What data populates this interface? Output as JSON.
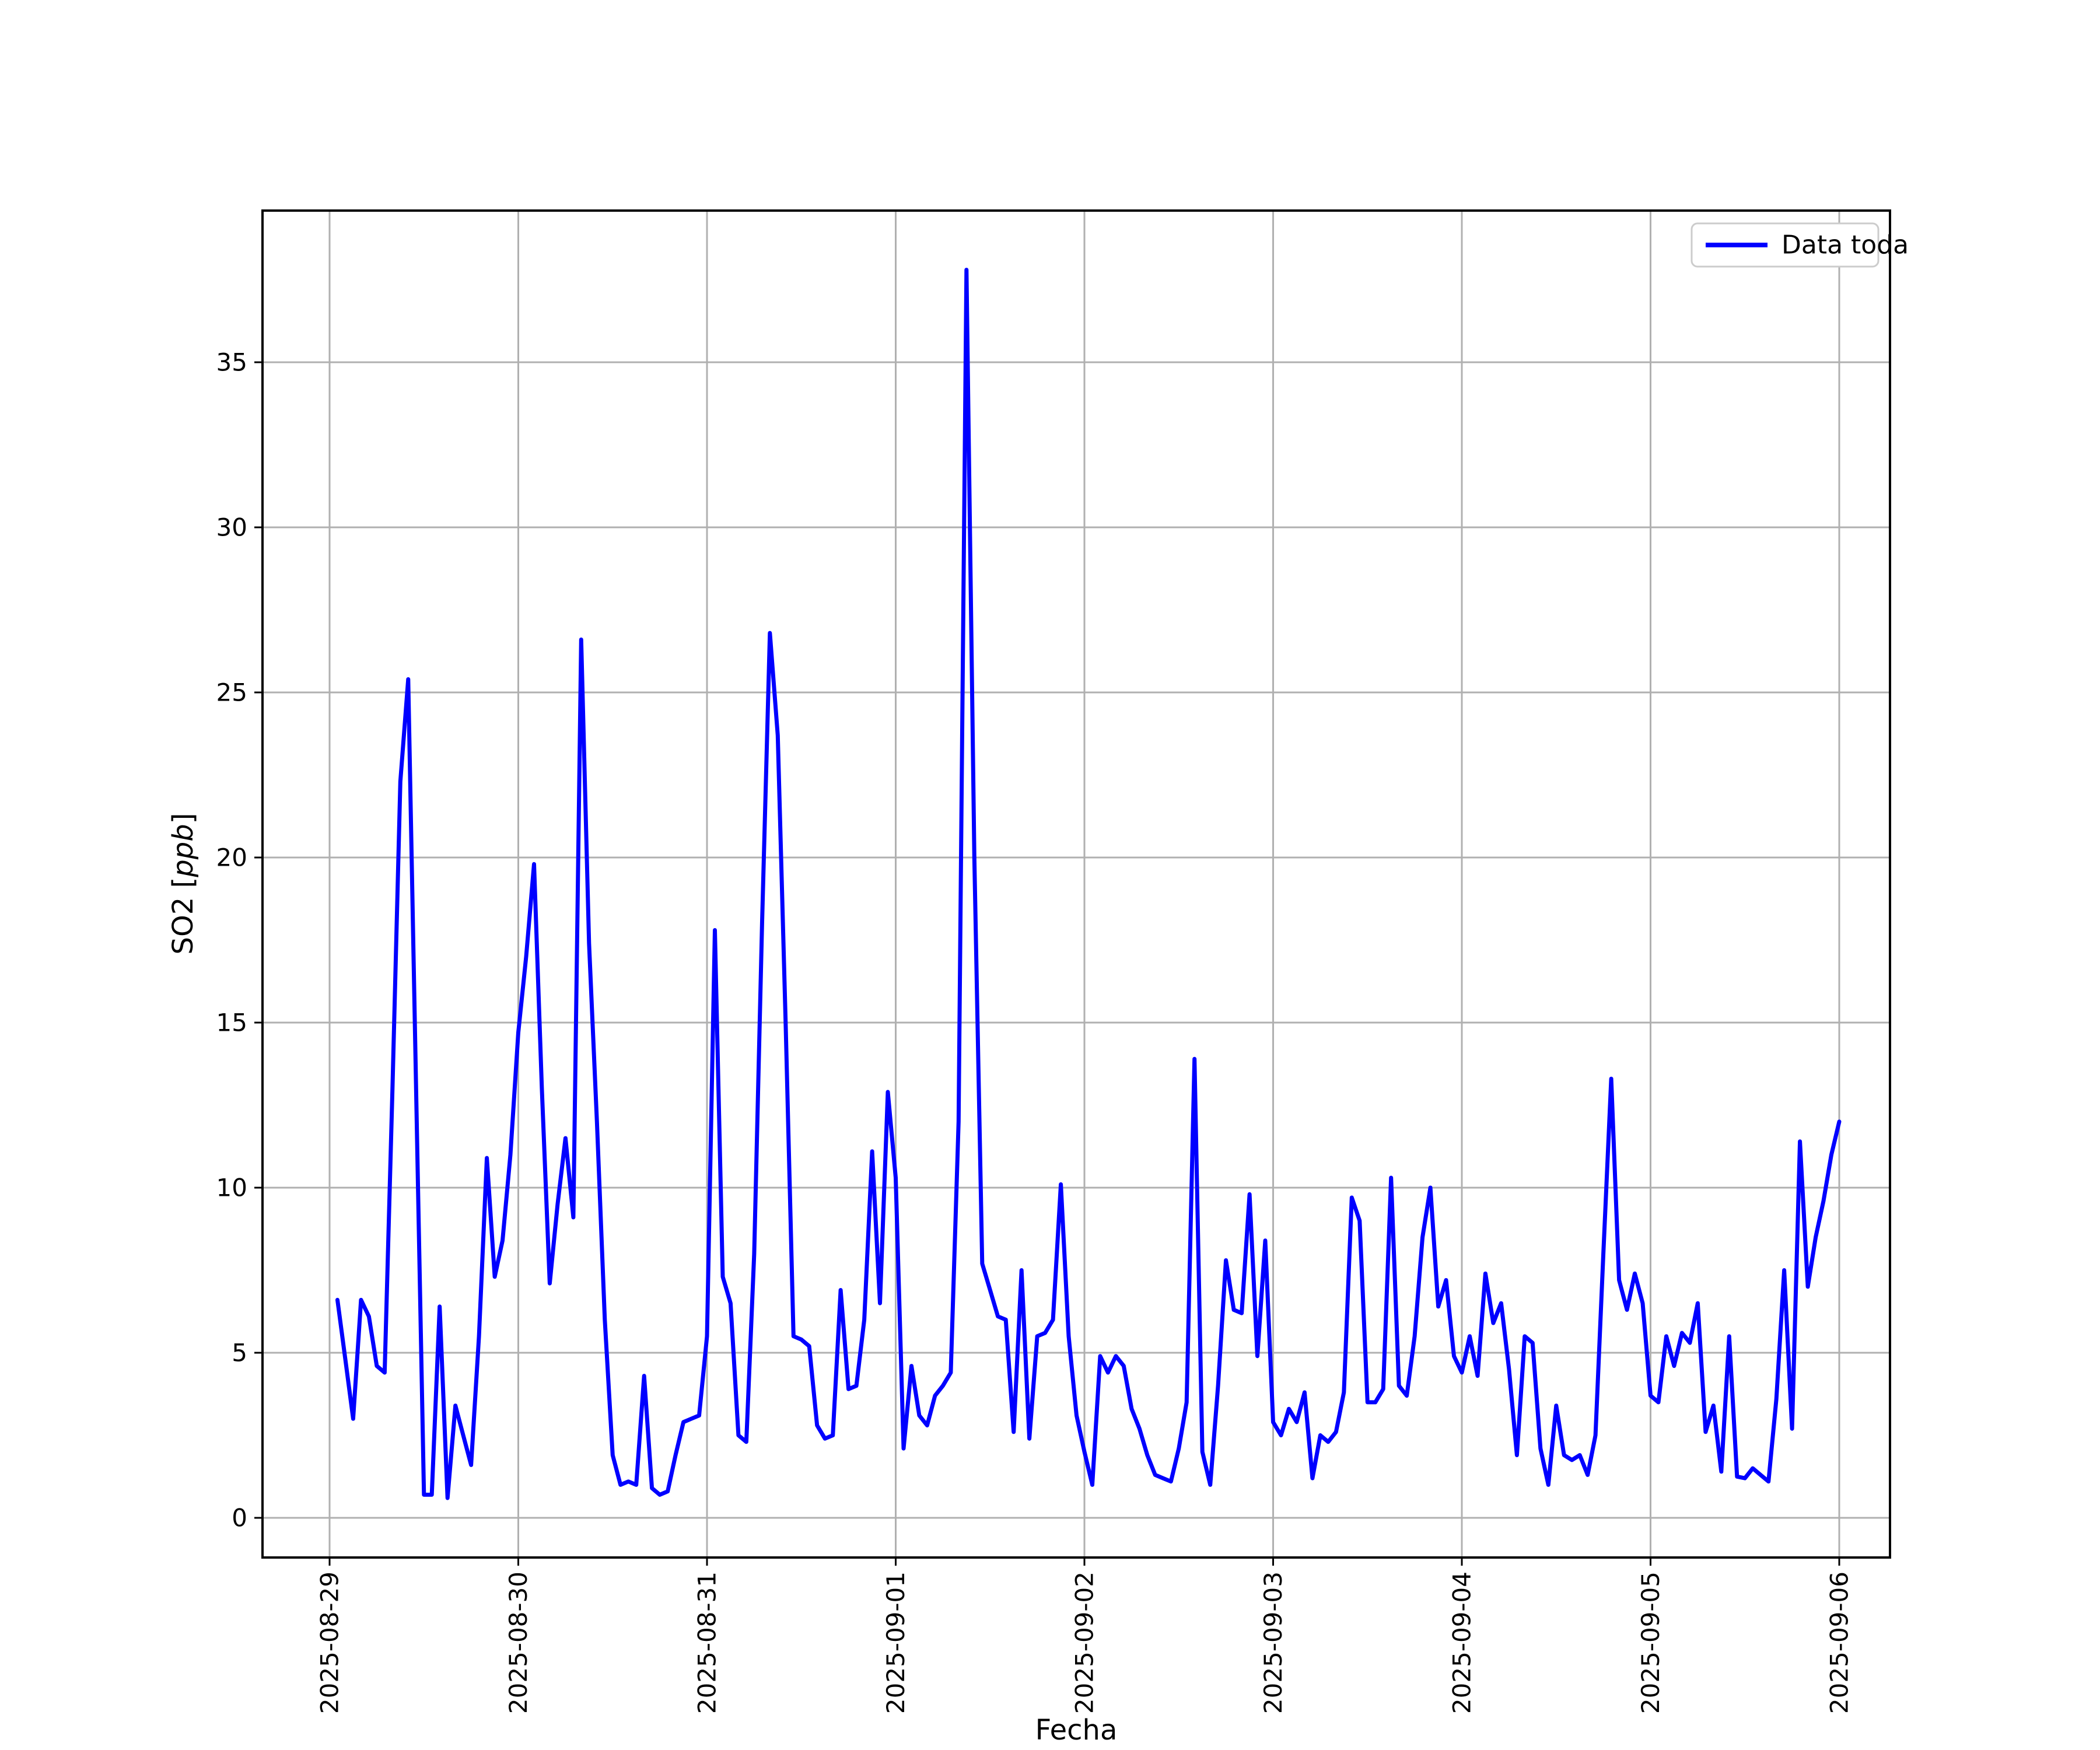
{
  "chart_data": {
    "type": "line",
    "title": "",
    "xlabel": "Fecha",
    "ylabel": "SO2 [ppb]",
    "ylabel_parts": {
      "prefix": "SO2 [",
      "italic": "ppb",
      "suffix": "]"
    },
    "legend": {
      "label": "Data toda",
      "position": "upper right"
    },
    "line_color": "#0000ff",
    "grid": true,
    "grid_color": "#b0b0b0",
    "axis_color": "#000000",
    "background_color": "#ffffff",
    "x_tick_labels": [
      "2025-08-29",
      "2025-08-30",
      "2025-08-31",
      "2025-09-01",
      "2025-09-02",
      "2025-09-03",
      "2025-09-04",
      "2025-09-05",
      "2025-09-06"
    ],
    "y_ticks": [
      0,
      5,
      10,
      15,
      20,
      25,
      30,
      35
    ],
    "ylim": [
      -1.2,
      39.7
    ],
    "x_start": "2025-08-29 01:00",
    "x_step_hours": 1,
    "points_per_day": 24,
    "values": [
      6.6,
      4.8,
      3.0,
      6.6,
      6.1,
      4.6,
      4.4,
      13.0,
      22.3,
      25.4,
      13.0,
      0.7,
      0.7,
      6.4,
      0.6,
      3.4,
      2.5,
      1.6,
      5.5,
      10.9,
      7.3,
      8.4,
      11.0,
      14.7,
      17.0,
      19.8,
      13.0,
      7.1,
      9.5,
      11.5,
      9.1,
      26.6,
      17.4,
      12.0,
      6.0,
      1.9,
      1.0,
      1.1,
      1.0,
      4.3,
      0.9,
      0.7,
      0.8,
      1.9,
      2.9,
      3.0,
      3.1,
      5.5,
      17.8,
      7.3,
      6.5,
      2.5,
      2.3,
      8.0,
      18.0,
      26.8,
      23.7,
      15.0,
      5.5,
      5.4,
      5.2,
      2.8,
      2.4,
      2.5,
      6.9,
      3.9,
      4.0,
      6.0,
      11.1,
      6.5,
      12.9,
      10.3,
      2.1,
      4.6,
      3.1,
      2.8,
      3.7,
      4.0,
      4.4,
      12.0,
      37.8,
      20.0,
      7.7,
      6.9,
      6.1,
      6.0,
      2.6,
      7.5,
      2.4,
      5.5,
      5.6,
      6.0,
      10.1,
      5.5,
      3.1,
      2.0,
      1.0,
      4.9,
      4.4,
      4.9,
      4.6,
      3.3,
      2.7,
      1.9,
      1.3,
      1.2,
      1.1,
      2.1,
      3.5,
      13.9,
      2.0,
      1.0,
      4.0,
      7.8,
      6.3,
      6.2,
      9.8,
      4.9,
      8.4,
      2.9,
      2.5,
      3.3,
      2.9,
      3.8,
      1.2,
      2.5,
      2.3,
      2.6,
      3.8,
      9.7,
      9.0,
      3.5,
      3.5,
      3.9,
      10.3,
      4.0,
      3.7,
      5.5,
      8.5,
      10.0,
      6.4,
      7.2,
      4.9,
      4.4,
      5.5,
      4.3,
      7.4,
      5.9,
      6.5,
      4.5,
      1.9,
      5.5,
      5.3,
      2.1,
      1.0,
      3.4,
      1.9,
      1.75,
      1.9,
      1.3,
      2.5,
      8.0,
      13.3,
      7.2,
      6.3,
      7.4,
      6.5,
      3.7,
      3.5,
      5.5,
      4.6,
      5.6,
      5.3,
      6.5,
      2.6,
      3.4,
      1.4,
      5.5,
      1.25,
      1.2,
      1.5,
      1.3,
      1.1,
      3.6,
      7.5,
      2.7,
      11.4,
      7.0,
      8.5,
      9.6,
      11.0,
      12.0
    ]
  }
}
